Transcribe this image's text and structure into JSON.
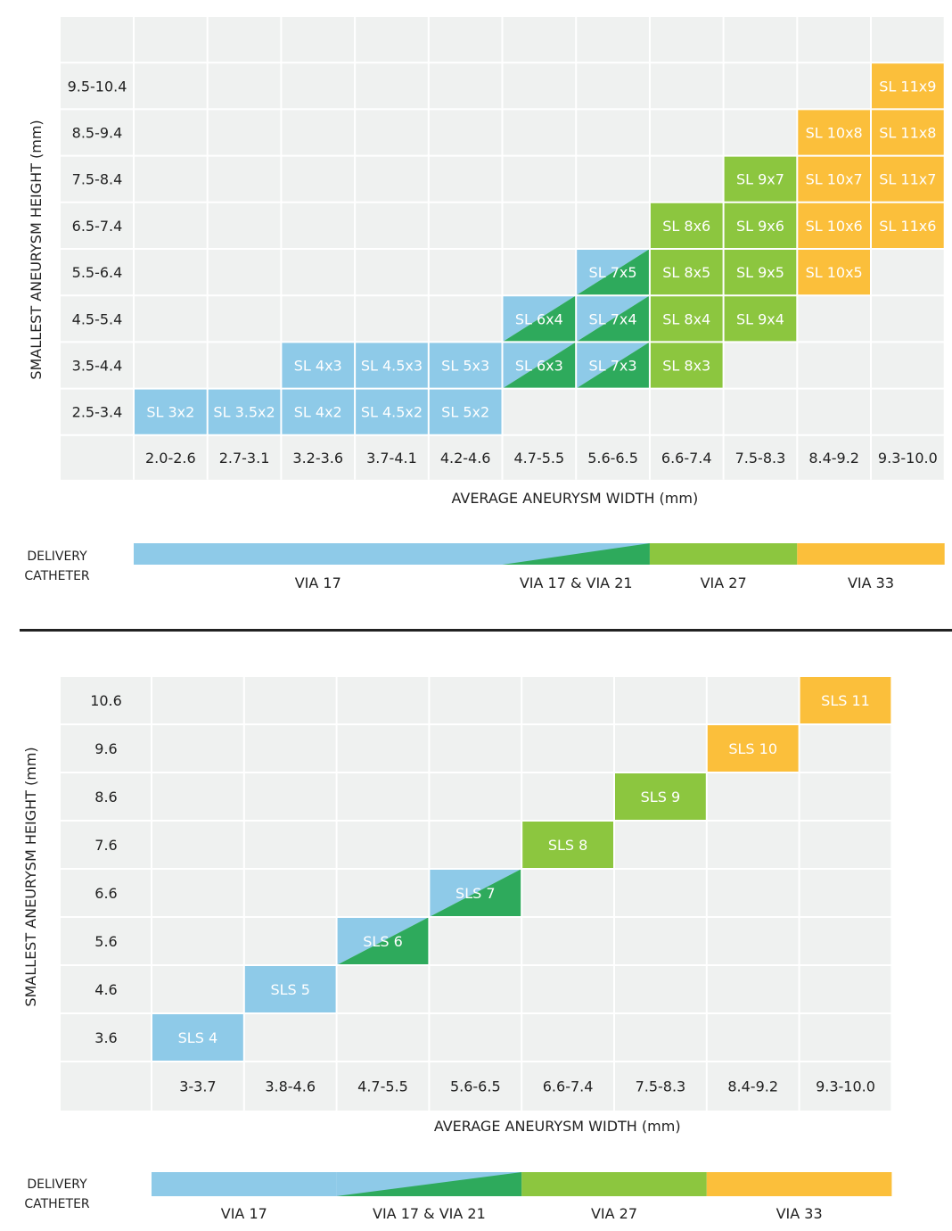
{
  "chart_data": [
    {
      "type": "heatmap",
      "xlabel": "AVERAGE ANEURYSM WIDTH (mm)",
      "ylabel": "SMALLEST ANEURYSM HEIGHT (mm)",
      "x_categories": [
        "2.0-2.6",
        "2.7-3.1",
        "3.2-3.6",
        "3.7-4.1",
        "4.2-4.6",
        "4.7-5.5",
        "5.6-6.5",
        "6.6-7.4",
        "7.5-8.3",
        "8.4-9.2",
        "9.3-10.0"
      ],
      "y_categories": [
        "9.5-10.4",
        "8.5-9.4",
        "7.5-8.4",
        "6.5-7.4",
        "5.5-6.4",
        "4.5-5.4",
        "3.5-4.4",
        "2.5-3.4"
      ],
      "colors": {
        "via17": "#8ecae8",
        "via21": "#2eaa5c",
        "via27": "#8cc63f",
        "via33": "#fbbf3b",
        "bg": "#eff1f0",
        "grid": "#ffffff"
      },
      "cells": [
        {
          "x": "9.3-10.0",
          "y": "9.5-10.4",
          "label": "SL 11x9",
          "catheter": "VIA 33"
        },
        {
          "x": "8.4-9.2",
          "y": "8.5-9.4",
          "label": "SL 10x8",
          "catheter": "VIA 33"
        },
        {
          "x": "9.3-10.0",
          "y": "8.5-9.4",
          "label": "SL 11x8",
          "catheter": "VIA 33"
        },
        {
          "x": "7.5-8.3",
          "y": "7.5-8.4",
          "label": "SL 9x7",
          "catheter": "VIA 27"
        },
        {
          "x": "8.4-9.2",
          "y": "7.5-8.4",
          "label": "SL 10x7",
          "catheter": "VIA 33"
        },
        {
          "x": "9.3-10.0",
          "y": "7.5-8.4",
          "label": "SL 11x7",
          "catheter": "VIA 33"
        },
        {
          "x": "6.6-7.4",
          "y": "6.5-7.4",
          "label": "SL 8x6",
          "catheter": "VIA 27"
        },
        {
          "x": "7.5-8.3",
          "y": "6.5-7.4",
          "label": "SL 9x6",
          "catheter": "VIA 27"
        },
        {
          "x": "8.4-9.2",
          "y": "6.5-7.4",
          "label": "SL 10x6",
          "catheter": "VIA 33"
        },
        {
          "x": "9.3-10.0",
          "y": "6.5-7.4",
          "label": "SL 11x6",
          "catheter": "VIA 33"
        },
        {
          "x": "5.6-6.5",
          "y": "5.5-6.4",
          "label": "SL 7x5",
          "catheter": "VIA 17 & VIA 21"
        },
        {
          "x": "6.6-7.4",
          "y": "5.5-6.4",
          "label": "SL 8x5",
          "catheter": "VIA 27"
        },
        {
          "x": "7.5-8.3",
          "y": "5.5-6.4",
          "label": "SL 9x5",
          "catheter": "VIA 27"
        },
        {
          "x": "8.4-9.2",
          "y": "5.5-6.4",
          "label": "SL 10x5",
          "catheter": "VIA 33"
        },
        {
          "x": "4.7-5.5",
          "y": "4.5-5.4",
          "label": "SL 6x4",
          "catheter": "VIA 17 & VIA 21"
        },
        {
          "x": "5.6-6.5",
          "y": "4.5-5.4",
          "label": "SL 7x4",
          "catheter": "VIA 17 & VIA 21"
        },
        {
          "x": "6.6-7.4",
          "y": "4.5-5.4",
          "label": "SL 8x4",
          "catheter": "VIA 27"
        },
        {
          "x": "7.5-8.3",
          "y": "4.5-5.4",
          "label": "SL 9x4",
          "catheter": "VIA 27"
        },
        {
          "x": "3.2-3.6",
          "y": "3.5-4.4",
          "label": "SL 4x3",
          "catheter": "VIA 17"
        },
        {
          "x": "3.7-4.1",
          "y": "3.5-4.4",
          "label": "SL 4.5x3",
          "catheter": "VIA 17"
        },
        {
          "x": "4.2-4.6",
          "y": "3.5-4.4",
          "label": "SL 5x3",
          "catheter": "VIA 17"
        },
        {
          "x": "4.7-5.5",
          "y": "3.5-4.4",
          "label": "SL 6x3",
          "catheter": "VIA 17 & VIA 21"
        },
        {
          "x": "5.6-6.5",
          "y": "3.5-4.4",
          "label": "SL 7x3",
          "catheter": "VIA 17 & VIA 21"
        },
        {
          "x": "6.6-7.4",
          "y": "3.5-4.4",
          "label": "SL 8x3",
          "catheter": "VIA 27"
        },
        {
          "x": "2.0-2.6",
          "y": "2.5-3.4",
          "label": "SL 3x2",
          "catheter": "VIA 17"
        },
        {
          "x": "2.7-3.1",
          "y": "2.5-3.4",
          "label": "SL 3.5x2",
          "catheter": "VIA 17"
        },
        {
          "x": "3.2-3.6",
          "y": "2.5-3.4",
          "label": "SL 4x2",
          "catheter": "VIA 17"
        },
        {
          "x": "3.7-4.1",
          "y": "2.5-3.4",
          "label": "SL 4.5x2",
          "catheter": "VIA 17"
        },
        {
          "x": "4.2-4.6",
          "y": "2.5-3.4",
          "label": "SL 5x2",
          "catheter": "VIA 17"
        }
      ],
      "delivery_catheter": {
        "label": "DELIVERY CATHETER",
        "segments": [
          {
            "name": "VIA 17",
            "from": "2.0-2.6",
            "to": "4.2-4.6"
          },
          {
            "name": "VIA 17 & VIA 21",
            "from": "4.7-5.5",
            "to": "5.6-6.5"
          },
          {
            "name": "VIA 27",
            "from": "6.6-7.4",
            "to": "7.5-8.3"
          },
          {
            "name": "VIA 33",
            "from": "8.4-9.2",
            "to": "9.3-10.0"
          }
        ]
      }
    },
    {
      "type": "heatmap",
      "xlabel": "AVERAGE ANEURYSM WIDTH (mm)",
      "ylabel": "SMALLEST ANEURYSM HEIGHT (mm)",
      "x_categories": [
        "3-3.7",
        "3.8-4.6",
        "4.7-5.5",
        "5.6-6.5",
        "6.6-7.4",
        "7.5-8.3",
        "8.4-9.2",
        "9.3-10.0"
      ],
      "y_categories": [
        "10.6",
        "9.6",
        "8.6",
        "7.6",
        "6.6",
        "5.6",
        "4.6",
        "3.6"
      ],
      "colors": {
        "via17": "#8ecae8",
        "via21": "#2eaa5c",
        "via27": "#8cc63f",
        "via33": "#fbbf3b",
        "bg": "#eff1f0",
        "grid": "#ffffff"
      },
      "cells": [
        {
          "x": "9.3-10.0",
          "y": "10.6",
          "label": "SLS 11",
          "catheter": "VIA 33"
        },
        {
          "x": "8.4-9.2",
          "y": "9.6",
          "label": "SLS 10",
          "catheter": "VIA 33"
        },
        {
          "x": "7.5-8.3",
          "y": "8.6",
          "label": "SLS 9",
          "catheter": "VIA 27"
        },
        {
          "x": "6.6-7.4",
          "y": "7.6",
          "label": "SLS 8",
          "catheter": "VIA 27"
        },
        {
          "x": "5.6-6.5",
          "y": "6.6",
          "label": "SLS 7",
          "catheter": "VIA 17 & VIA 21"
        },
        {
          "x": "4.7-5.5",
          "y": "5.6",
          "label": "SLS 6",
          "catheter": "VIA 17 & VIA 21"
        },
        {
          "x": "3.8-4.6",
          "y": "4.6",
          "label": "SLS 5",
          "catheter": "VIA 17"
        },
        {
          "x": "3-3.7",
          "y": "3.6",
          "label": "SLS 4",
          "catheter": "VIA 17"
        }
      ],
      "delivery_catheter": {
        "label": "DELIVERY CATHETER",
        "segments": [
          {
            "name": "VIA 17",
            "from": "3-3.7",
            "to": "3.8-4.6"
          },
          {
            "name": "VIA 17 & VIA 21",
            "from": "4.7-5.5",
            "to": "5.6-6.5"
          },
          {
            "name": "VIA 27",
            "from": "6.6-7.4",
            "to": "7.5-8.3"
          },
          {
            "name": "VIA 33",
            "from": "8.4-9.2",
            "to": "9.3-10.0"
          }
        ]
      }
    }
  ]
}
